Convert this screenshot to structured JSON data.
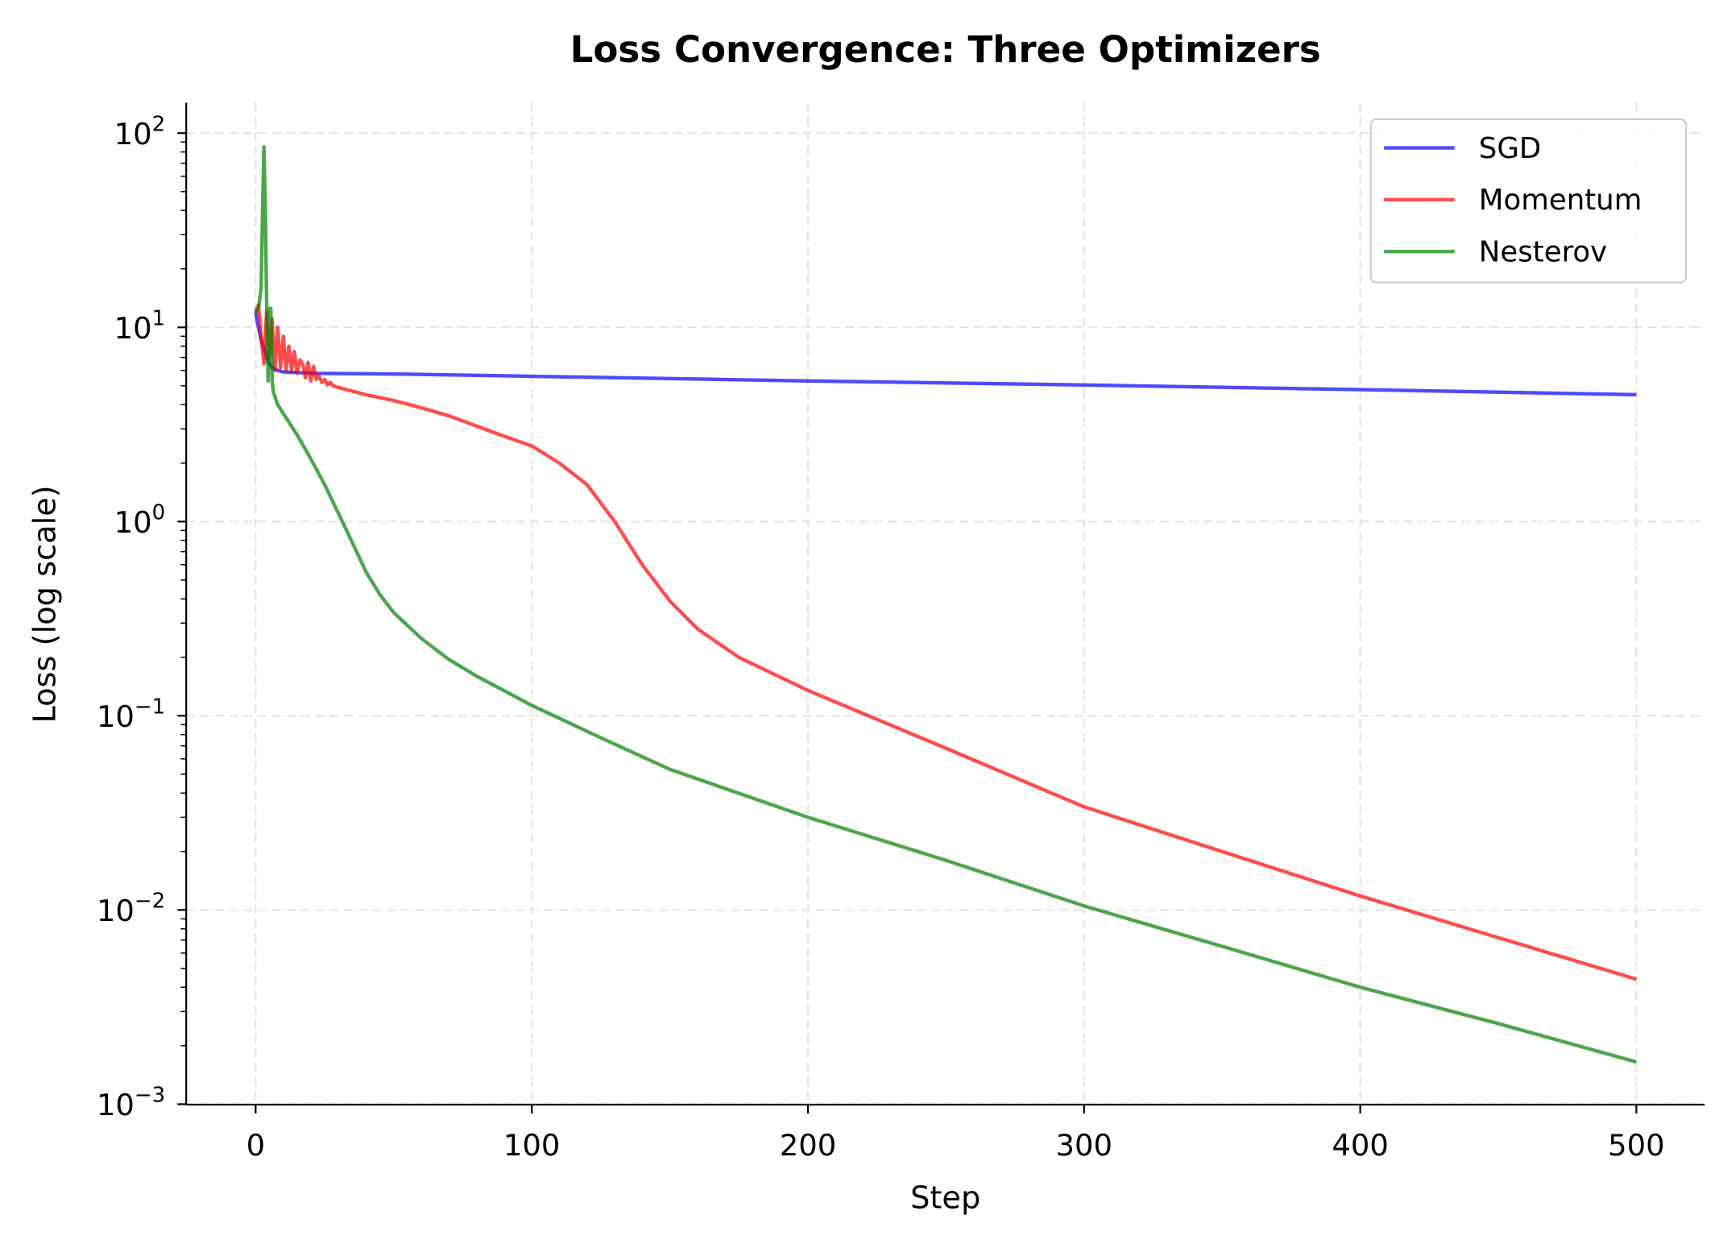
{
  "chart_data": {
    "type": "line",
    "title": "Loss Convergence: Three Optimizers",
    "xlabel": "Step",
    "ylabel": "Loss (log scale)",
    "xlim": [
      -25,
      525
    ],
    "ylim": [
      0.001,
      140
    ],
    "yscale": "log",
    "grid": true,
    "legend_position": "top-right",
    "x_ticks": [
      0,
      100,
      200,
      300,
      400,
      500
    ],
    "y_ticks": [
      {
        "base": "10",
        "exp": "2",
        "value": 100
      },
      {
        "base": "10",
        "exp": "1",
        "value": 10
      },
      {
        "base": "10",
        "exp": "0",
        "value": 1
      },
      {
        "base": "10",
        "exp": "−1",
        "value": 0.1
      },
      {
        "base": "10",
        "exp": "−2",
        "value": 0.01
      },
      {
        "base": "10",
        "exp": "−3",
        "value": 0.001
      }
    ],
    "series": [
      {
        "name": "SGD",
        "color": "#0000ff",
        "x": [
          0,
          1,
          2,
          3,
          4,
          5,
          6,
          8,
          10,
          15,
          20,
          50,
          100,
          200,
          300,
          400,
          500
        ],
        "y": [
          12,
          10,
          8.6,
          7.8,
          7.0,
          6.5,
          6.2,
          6.0,
          5.9,
          5.85,
          5.8,
          5.75,
          5.6,
          5.3,
          5.05,
          4.78,
          4.5
        ]
      },
      {
        "name": "Momentum",
        "color": "#ff0000",
        "x": [
          0,
          1,
          2,
          3,
          4,
          5,
          6,
          7,
          8,
          9,
          10,
          11,
          12,
          13,
          14,
          15,
          16,
          17,
          18,
          19,
          20,
          21,
          22,
          23,
          24,
          25,
          26,
          27,
          28,
          30,
          35,
          40,
          50,
          60,
          70,
          80,
          90,
          100,
          110,
          120,
          130,
          140,
          150,
          160,
          175,
          200,
          250,
          300,
          350,
          400,
          450,
          500
        ],
        "y": [
          12,
          13,
          9,
          6.5,
          12,
          7,
          11,
          6,
          10,
          6.2,
          9,
          6,
          8,
          6,
          7.5,
          5.8,
          6.8,
          6.5,
          5.5,
          6.6,
          5.3,
          6.3,
          5.4,
          5.6,
          5.2,
          5.4,
          5.05,
          5.2,
          5.0,
          4.9,
          4.7,
          4.5,
          4.2,
          3.85,
          3.5,
          3.1,
          2.75,
          2.45,
          2.0,
          1.55,
          1.0,
          0.6,
          0.39,
          0.28,
          0.2,
          0.135,
          0.068,
          0.034,
          0.02,
          0.0118,
          0.0072,
          0.0044
        ]
      },
      {
        "name": "Nesterov",
        "color": "#008000",
        "x": [
          0,
          1,
          2,
          2.5,
          3,
          3.5,
          4,
          4.5,
          5,
          5.5,
          6,
          6.5,
          7,
          8,
          10,
          15,
          20,
          25,
          30,
          35,
          40,
          45,
          50,
          60,
          70,
          80,
          100,
          125,
          150,
          200,
          250,
          300,
          350,
          400,
          450,
          500
        ],
        "y": [
          12,
          12.5,
          16,
          40,
          85,
          40,
          13,
          5.3,
          12.5,
          12.5,
          5.2,
          4.6,
          4.4,
          4.0,
          3.6,
          2.8,
          2.1,
          1.55,
          1.1,
          0.78,
          0.55,
          0.42,
          0.34,
          0.25,
          0.195,
          0.16,
          0.113,
          0.077,
          0.053,
          0.03,
          0.018,
          0.0105,
          0.0065,
          0.004,
          0.0026,
          0.00165
        ]
      }
    ]
  }
}
